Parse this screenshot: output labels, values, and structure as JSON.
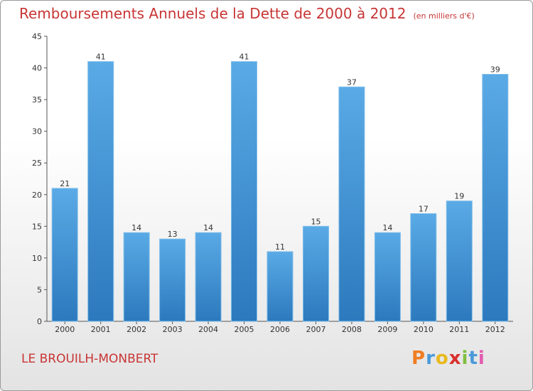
{
  "header": {
    "title": "Remboursements Annuels de la Dette de 2000 à 2012",
    "unit": "(en milliers d'€)"
  },
  "footer": {
    "place": "LE BROUILH-MONBERT",
    "logo": [
      "P",
      "r",
      "o",
      "x",
      "i",
      "t",
      "i"
    ],
    "logo_colors": [
      "#f07d22",
      "#4a9ad8",
      "#e9b91c",
      "#d9302e",
      "#7fbf3f",
      "#4a9ad8",
      "#e25bb0"
    ]
  },
  "chart_data": {
    "type": "bar",
    "categories": [
      "2000",
      "2001",
      "2002",
      "2003",
      "2004",
      "2005",
      "2006",
      "2007",
      "2008",
      "2009",
      "2010",
      "2011",
      "2012"
    ],
    "values": [
      21,
      41,
      14,
      13,
      14,
      41,
      11,
      15,
      37,
      14,
      17,
      19,
      39
    ],
    "ylim": [
      0,
      45
    ],
    "yticks": [
      0,
      5,
      10,
      15,
      20,
      25,
      30,
      35,
      40,
      45
    ],
    "bar_color": "#3a8fd6",
    "grid": false
  }
}
